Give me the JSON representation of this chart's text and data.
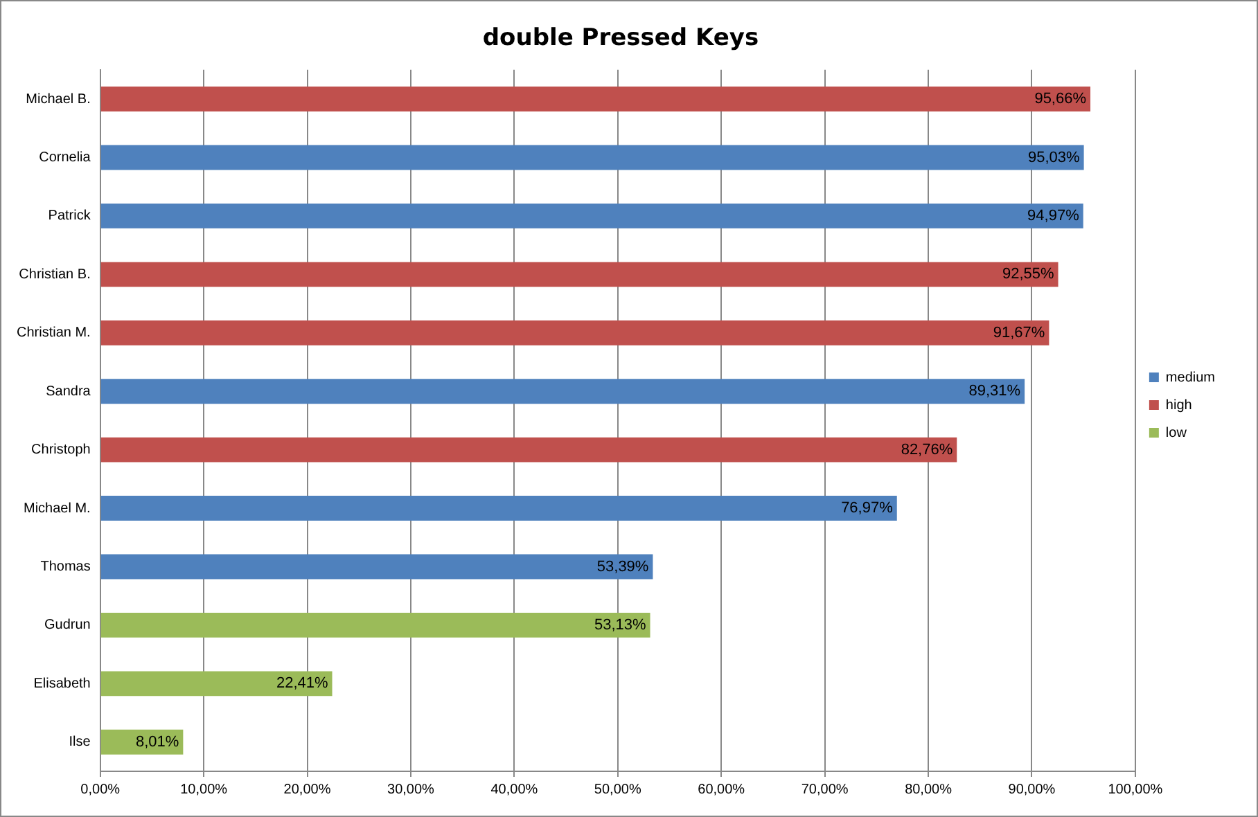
{
  "chart_data": {
    "type": "bar",
    "orientation": "horizontal",
    "stacked": true,
    "title": "double Pressed Keys",
    "categories": [
      "Michael B.",
      "Cornelia",
      "Patrick",
      "Christian B.",
      "Christian M.",
      "Sandra",
      "Christoph",
      "Michael M.",
      "Thomas",
      "Gudrun",
      "Elisabeth",
      "Ilse"
    ],
    "series": [
      {
        "name": "medium",
        "color": "#4f81bd",
        "values": [
          null,
          95.03,
          94.97,
          null,
          null,
          89.31,
          null,
          76.97,
          53.39,
          null,
          null,
          null
        ],
        "value_labels": [
          null,
          "95,03%",
          "94,97%",
          null,
          null,
          "89,31%",
          null,
          "76,97%",
          "53,39%",
          null,
          null,
          null
        ]
      },
      {
        "name": "high",
        "color": "#c0504d",
        "values": [
          95.66,
          null,
          null,
          92.55,
          91.67,
          null,
          82.76,
          null,
          null,
          null,
          null,
          null
        ],
        "value_labels": [
          "95,66%",
          null,
          null,
          "92,55%",
          "91,67%",
          null,
          "82,76%",
          null,
          null,
          null,
          null,
          null
        ]
      },
      {
        "name": "low",
        "color": "#9bbb59",
        "values": [
          null,
          null,
          null,
          null,
          null,
          null,
          null,
          null,
          null,
          53.13,
          22.41,
          8.01
        ],
        "value_labels": [
          null,
          null,
          null,
          null,
          null,
          null,
          null,
          null,
          null,
          "53,13%",
          "22,41%",
          "8,01%"
        ]
      }
    ],
    "xlim": [
      0,
      100
    ],
    "xticks": [
      {
        "value": 0,
        "label": "0,00%"
      },
      {
        "value": 10,
        "label": "10,00%"
      },
      {
        "value": 20,
        "label": "20,00%"
      },
      {
        "value": 30,
        "label": "30,00%"
      },
      {
        "value": 40,
        "label": "40,00%"
      },
      {
        "value": 50,
        "label": "50,00%"
      },
      {
        "value": 60,
        "label": "60,00%"
      },
      {
        "value": 70,
        "label": "70,00%"
      },
      {
        "value": 80,
        "label": "80,00%"
      },
      {
        "value": 90,
        "label": "90,00%"
      },
      {
        "value": 100,
        "label": "100,00%"
      }
    ],
    "grid": "x",
    "legend": "right"
  }
}
